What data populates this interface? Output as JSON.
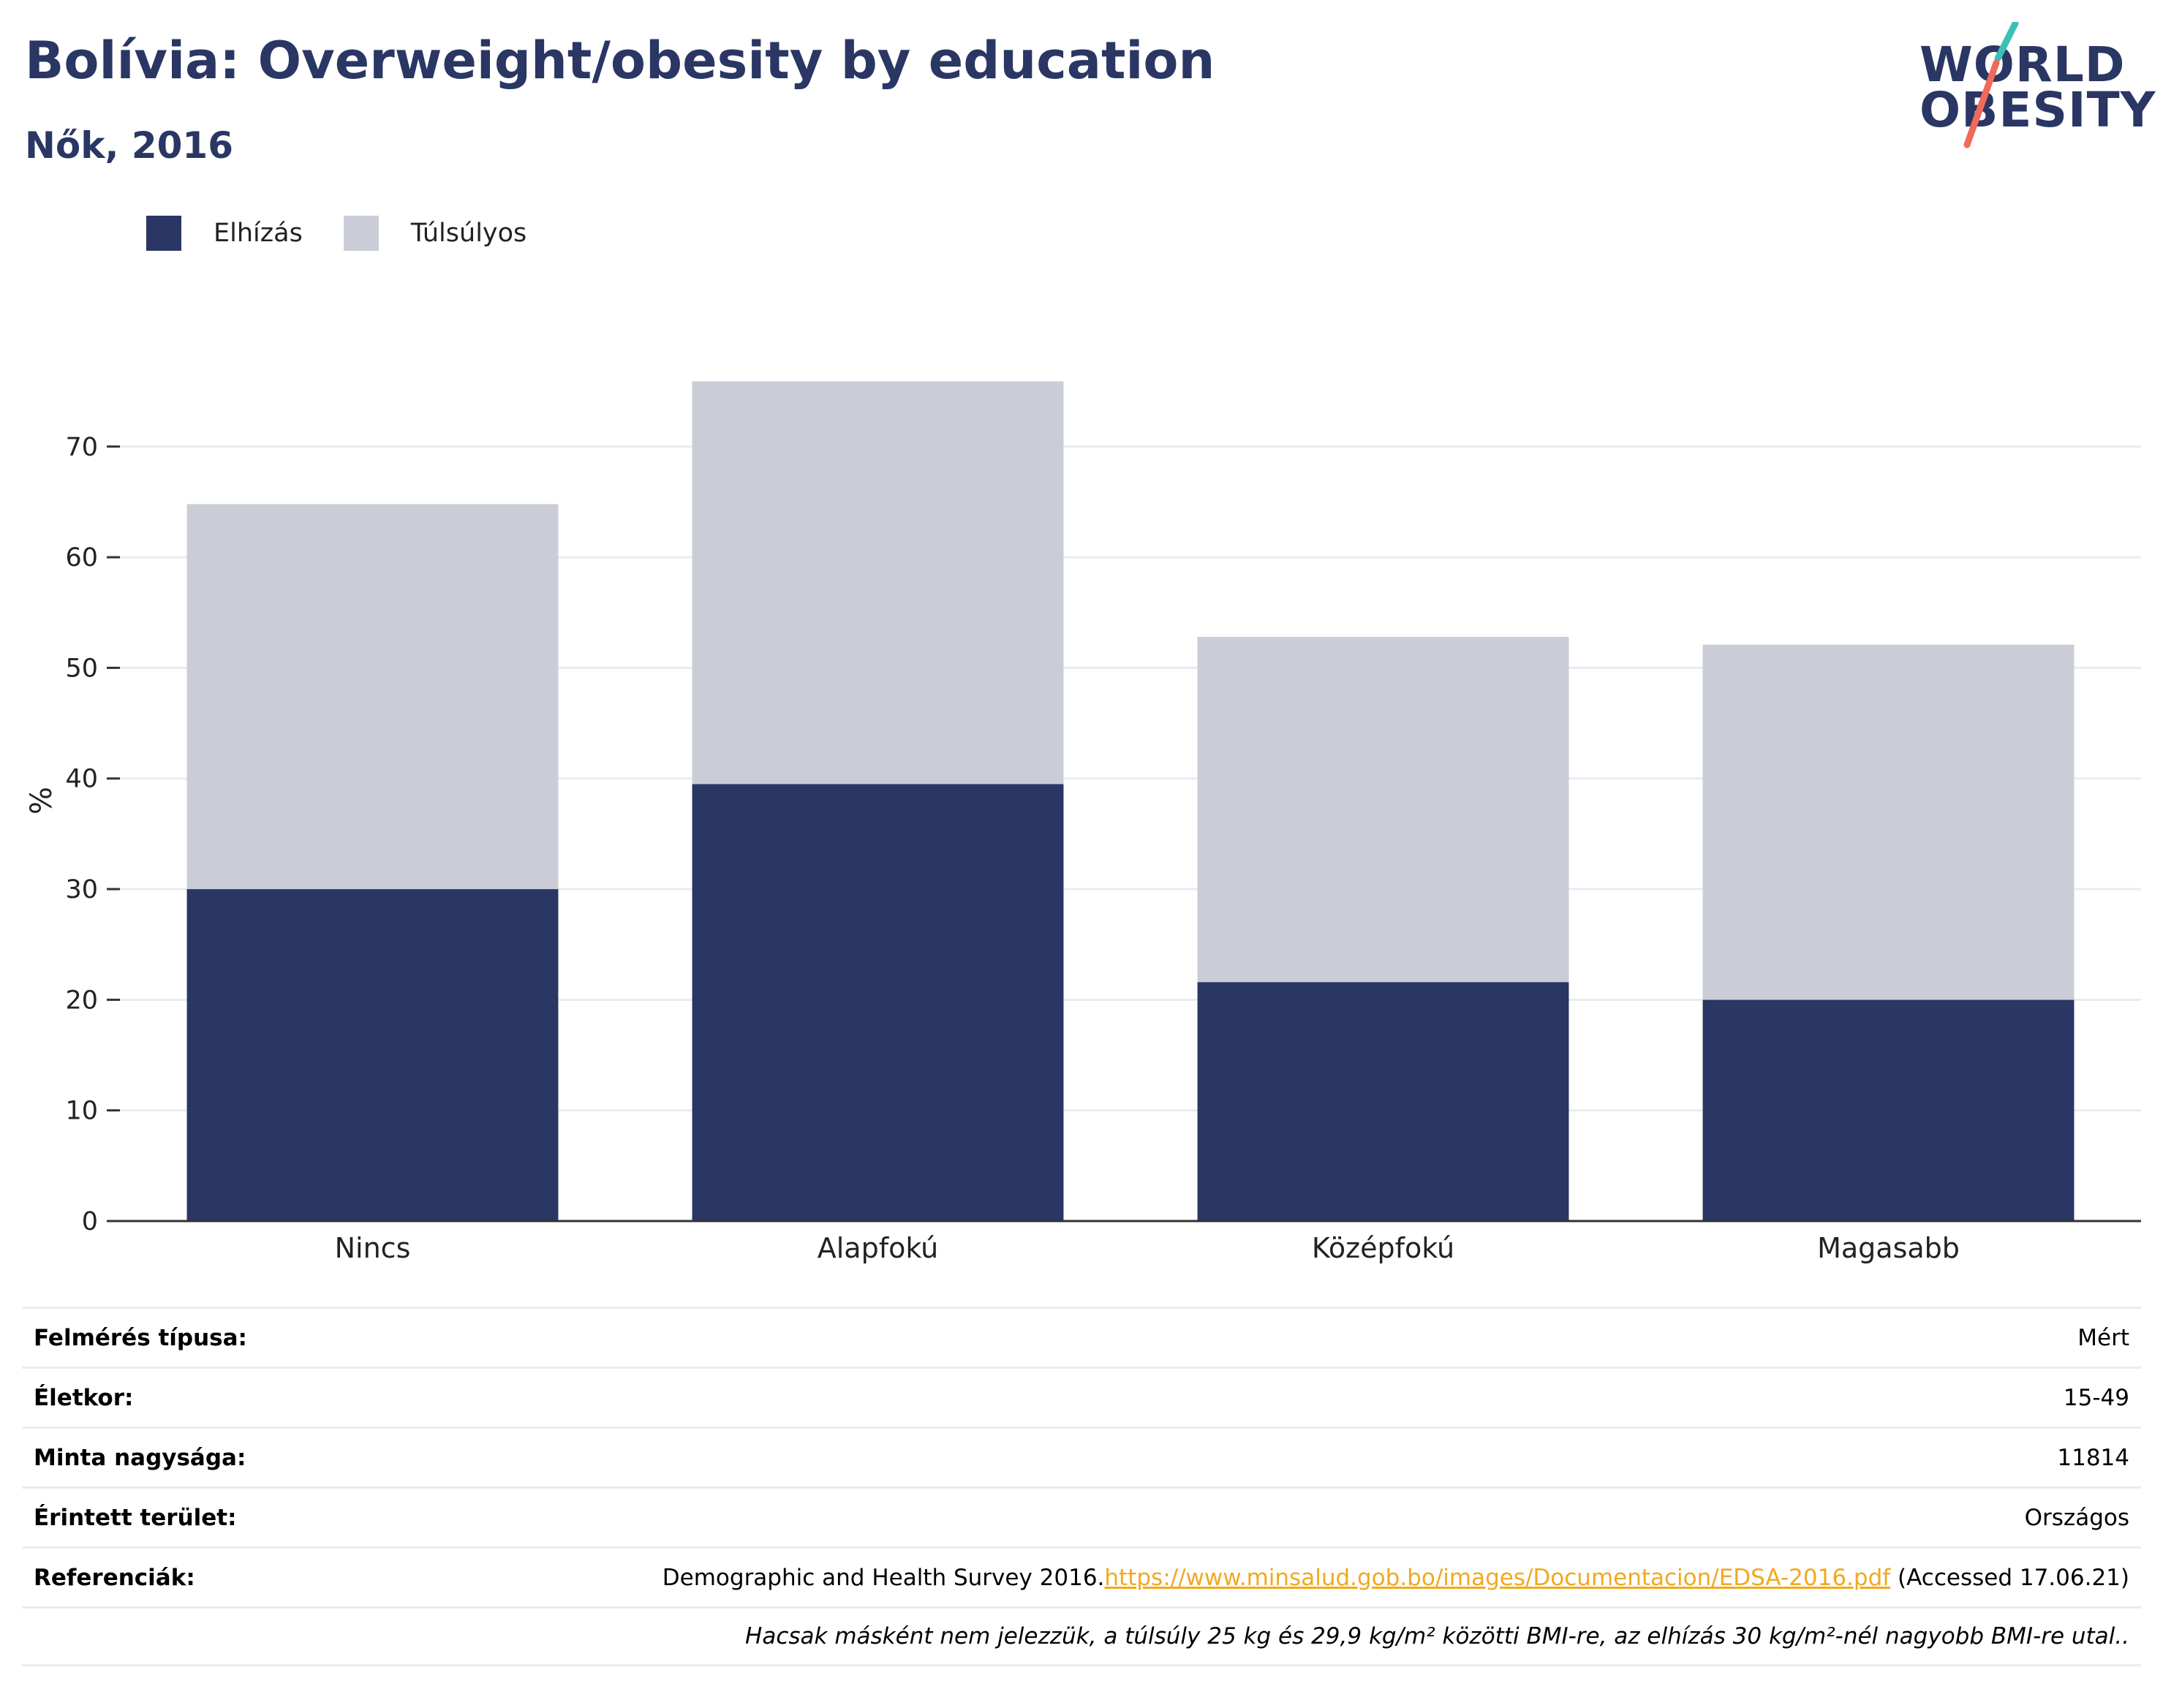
{
  "header": {
    "title": "Bolívia: Overweight/obesity by education",
    "subtitle": "Nők, 2016"
  },
  "logo": {
    "line1": "WORLD",
    "line2": "OBESITY"
  },
  "chart_data": {
    "type": "bar",
    "stacked": true,
    "categories": [
      "Nincs",
      "Alapfokú",
      "Középfokú",
      "Magasabb"
    ],
    "series": [
      {
        "name": "Elhízás",
        "values": [
          30.0,
          39.5,
          21.6,
          20.0
        ],
        "color": "#2a3663"
      },
      {
        "name": "Túlsúlyos",
        "values": [
          34.8,
          36.4,
          31.2,
          32.1
        ],
        "color": "#cacdd8"
      }
    ],
    "ylabel": "%",
    "ylim": [
      0,
      76
    ],
    "yticks": [
      0,
      10,
      20,
      30,
      40,
      50,
      60,
      70
    ],
    "grid": true,
    "legend_position": "top-left"
  },
  "info": {
    "rows": [
      {
        "label": "Felmérés típusa:",
        "value": "Mért"
      },
      {
        "label": "Életkor:",
        "value": "15-49"
      },
      {
        "label": "Minta nagysága:",
        "value": "11814"
      },
      {
        "label": "Érintett terület:",
        "value": "Országos"
      }
    ],
    "references": {
      "label": "Referenciák:",
      "text_before": "Demographic and Health Survey 2016.",
      "link": "https://www.minsalud.gob.bo/images/Documentacion/EDSA-2016.pdf",
      "text_after": " (Accessed 17.06.21)"
    },
    "footnote": "Hacsak másként nem jelezzük, a túlsúly 25 kg és 29,9 kg/m² közötti BMI-re, az elhízás 30 kg/m²-nél nagyobb BMI-re utal.."
  }
}
